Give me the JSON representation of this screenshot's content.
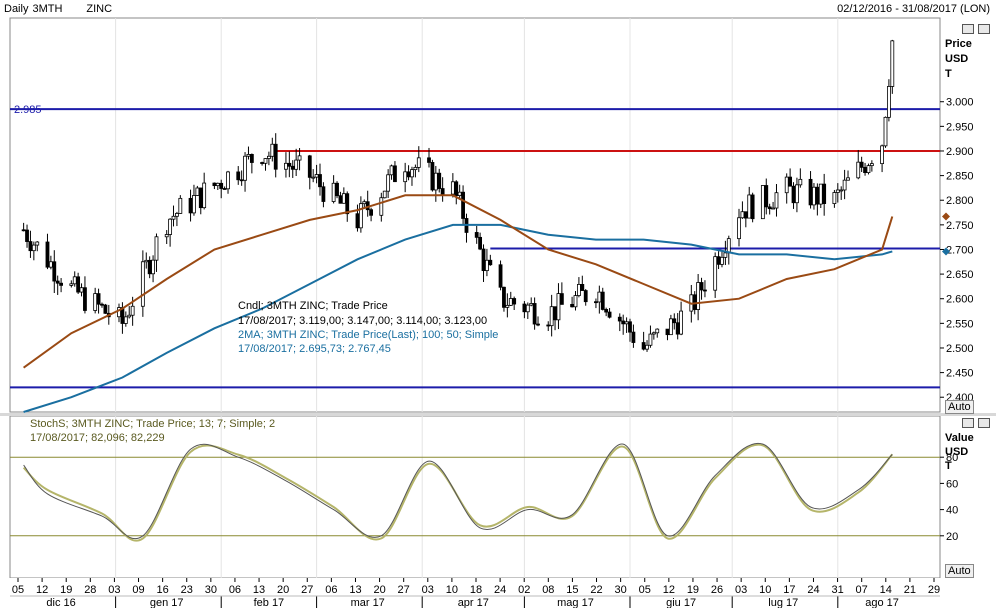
{
  "header": {
    "frequency": "Daily",
    "symbol": "3MTH",
    "instrument": "ZINC",
    "date_range": "02/12/2016 - 31/08/2017 (LON)"
  },
  "price_panel": {
    "unit_label": [
      "Price",
      "USD",
      "T"
    ],
    "auto_label": "Auto",
    "level_label": "2.985",
    "info_lines": [
      "Cndl; 3MTH       ZINC; Trade Price",
      "17/08/2017; 3.119,00; 3.147,00; 3.114,00; 3.123,00",
      "2MA; 3MTH       ZINC; Trade Price(Last);  100; 50; Simple",
      "17/08/2017; 2.695,73; 2.767,45"
    ]
  },
  "stoch_panel": {
    "unit_label": [
      "Value",
      "USD",
      "T"
    ],
    "auto_label": "Auto",
    "info_lines": [
      "StochS; 3MTH       ZINC; Trade Price;  13; 7; Simple; 2",
      "17/08/2017; 82,096; 82,229"
    ]
  },
  "x_axis": {
    "day_ticks": [
      "05",
      "12",
      "19",
      "28",
      "03",
      "09",
      "16",
      "23",
      "30",
      "06",
      "13",
      "20",
      "27",
      "06",
      "13",
      "20",
      "27",
      "03",
      "10",
      "18",
      "24",
      "02",
      "08",
      "15",
      "22",
      "30",
      "05",
      "12",
      "19",
      "26",
      "03",
      "10",
      "17",
      "24",
      "31",
      "07",
      "14",
      "21",
      "29"
    ],
    "month_labels": [
      "dic 16",
      "gen 17",
      "feb 17",
      "mar 17",
      "apr 17",
      "mag 17",
      "giu 17",
      "lug 17",
      "ago 17"
    ]
  },
  "colors": {
    "candle": "#000000",
    "ma100": "#1a6fa0",
    "ma50": "#9a4a14",
    "blue_level": "#1c1caa",
    "red_level": "#cc1111",
    "stoch_k": "#555555",
    "stoch_d": "#b5b56a",
    "stoch_band": "#8a8a30"
  },
  "chart_data": [
    {
      "type": "candlestick",
      "title": "Daily 3MTH ZINC",
      "y_ticks": [
        2.4,
        2.45,
        2.5,
        2.55,
        2.6,
        2.65,
        2.7,
        2.75,
        2.8,
        2.85,
        2.9,
        2.95,
        3.0
      ],
      "y_tick_labels": [
        "2.400",
        "2.450",
        "2.500",
        "2.550",
        "2.600",
        "2.650",
        "2.700",
        "2.750",
        "2.800",
        "2.850",
        "2.900",
        "2.950",
        "3.000"
      ],
      "ylim": [
        2.37,
        3.17
      ],
      "x": [
        "2016-12-05",
        "2016-12-19",
        "2017-01-03",
        "2017-01-16",
        "2017-01-30",
        "2017-02-13",
        "2017-02-27",
        "2017-03-13",
        "2017-03-27",
        "2017-04-10",
        "2017-04-24",
        "2017-05-08",
        "2017-05-22",
        "2017-06-05",
        "2017-06-19",
        "2017-07-03",
        "2017-07-17",
        "2017-07-31",
        "2017-08-14",
        "2017-08-17"
      ],
      "close": [
        2.74,
        2.62,
        2.55,
        2.76,
        2.83,
        2.9,
        2.85,
        2.76,
        2.88,
        2.82,
        2.6,
        2.57,
        2.62,
        2.5,
        2.58,
        2.78,
        2.82,
        2.8,
        2.92,
        3.123
      ],
      "ma100": [
        2.37,
        2.4,
        2.44,
        2.49,
        2.54,
        2.58,
        2.63,
        2.68,
        2.72,
        2.75,
        2.75,
        2.73,
        2.72,
        2.72,
        2.71,
        2.69,
        2.69,
        2.68,
        2.69,
        2.696
      ],
      "ma50": [
        2.46,
        2.53,
        2.58,
        2.64,
        2.7,
        2.73,
        2.76,
        2.78,
        2.81,
        2.81,
        2.76,
        2.7,
        2.67,
        2.63,
        2.59,
        2.6,
        2.64,
        2.66,
        2.7,
        2.767
      ],
      "level_lines": [
        {
          "value": 2.985,
          "color": "blue"
        },
        {
          "value": 2.42,
          "color": "blue"
        },
        {
          "value": 2.9,
          "color": "red"
        },
        {
          "value": 2.702,
          "color": "blue"
        }
      ]
    },
    {
      "type": "line",
      "title": "StochS",
      "y_ticks": [
        20,
        40,
        60,
        80
      ],
      "ylim": [
        0,
        100
      ],
      "band_lines": [
        80,
        20
      ],
      "x": [
        "2016-12-05",
        "2016-12-12",
        "2016-12-28",
        "2017-01-09",
        "2017-01-23",
        "2017-02-06",
        "2017-02-20",
        "2017-03-06",
        "2017-03-20",
        "2017-04-03",
        "2017-04-18",
        "2017-05-02",
        "2017-05-15",
        "2017-05-30",
        "2017-06-12",
        "2017-06-26",
        "2017-07-10",
        "2017-07-24",
        "2017-08-07",
        "2017-08-17"
      ],
      "k": [
        74,
        52,
        35,
        20,
        86,
        80,
        62,
        40,
        20,
        77,
        26,
        40,
        36,
        90,
        20,
        66,
        90,
        42,
        55,
        82.1
      ],
      "d": [
        72,
        55,
        37,
        18,
        84,
        82,
        64,
        42,
        18,
        75,
        28,
        42,
        35,
        88,
        18,
        64,
        89,
        40,
        53,
        82.2
      ]
    }
  ]
}
